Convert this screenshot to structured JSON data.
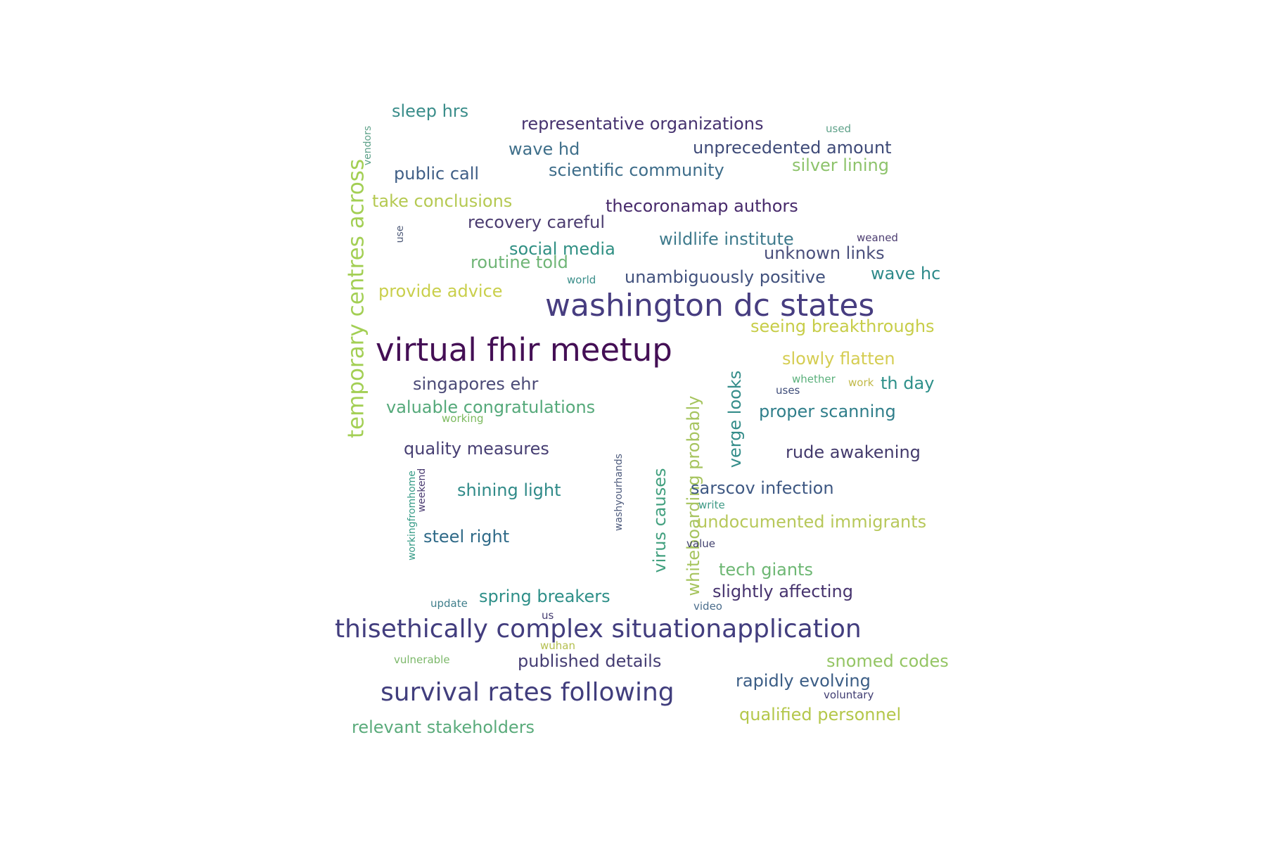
{
  "words": [
    {
      "text": "virtual fhir meetup",
      "color": "#440f55"
    },
    {
      "text": "washington dc states",
      "color": "#473d80"
    },
    {
      "text": "thisethically complex situationapplication",
      "color": "#423d7e"
    },
    {
      "text": "survival rates following",
      "color": "#413e7d"
    },
    {
      "text": "temporary centres across",
      "color": "#a3cf54"
    },
    {
      "text": "sleep hrs",
      "color": "#3a8d8a"
    },
    {
      "text": "representative organizations",
      "color": "#46326f"
    },
    {
      "text": "used",
      "color": "#5ea189"
    },
    {
      "text": "vendors",
      "color": "#5ea189"
    },
    {
      "text": "wave hd",
      "color": "#3f6f8a"
    },
    {
      "text": "unprecedented amount",
      "color": "#3e4a78"
    },
    {
      "text": "public call",
      "color": "#3f5e86"
    },
    {
      "text": "scientific community",
      "color": "#3d6c89"
    },
    {
      "text": "silver lining",
      "color": "#8dc36b"
    },
    {
      "text": "take conclusions",
      "color": "#b5c951"
    },
    {
      "text": "thecoronamap authors",
      "color": "#46296a"
    },
    {
      "text": "recovery careful",
      "color": "#4b3c70"
    },
    {
      "text": "use",
      "color": "#4e5a78"
    },
    {
      "text": "social media",
      "color": "#2f8f83"
    },
    {
      "text": "wildlife institute",
      "color": "#3e7a8c"
    },
    {
      "text": "weaned",
      "color": "#4b3c70"
    },
    {
      "text": "unknown links",
      "color": "#4a4f7c"
    },
    {
      "text": "routine told",
      "color": "#6fb576"
    },
    {
      "text": "wave hc",
      "color": "#2f8a8a"
    },
    {
      "text": "world",
      "color": "#3a8e8a"
    },
    {
      "text": "unambiguously positive",
      "color": "#41517d"
    },
    {
      "text": "provide advice",
      "color": "#c9cf4b"
    },
    {
      "text": "seeing breakthroughs",
      "color": "#c7cd48"
    },
    {
      "text": "slowly flatten",
      "color": "#d5cd52"
    },
    {
      "text": "whether",
      "color": "#5ab07b"
    },
    {
      "text": "work",
      "color": "#c2b948"
    },
    {
      "text": "th day",
      "color": "#2e908a"
    },
    {
      "text": "uses",
      "color": "#3f4d79"
    },
    {
      "text": "singapores ehr",
      "color": "#4b4a77"
    },
    {
      "text": "valuable congratulations",
      "color": "#55a97a"
    },
    {
      "text": "working",
      "color": "#7cba5e"
    },
    {
      "text": "verge looks",
      "color": "#358d8a"
    },
    {
      "text": "whiteboarding probably",
      "color": "#a6c45e"
    },
    {
      "text": "proper scanning",
      "color": "#2f7e8a"
    },
    {
      "text": "quality measures",
      "color": "#473f73"
    },
    {
      "text": "rude awakening",
      "color": "#433a6c"
    },
    {
      "text": "washyourhands",
      "color": "#4d5a7c"
    },
    {
      "text": "virus causes",
      "color": "#42a07f"
    },
    {
      "text": "workingfromhome",
      "color": "#359a86"
    },
    {
      "text": "weekend",
      "color": "#4b3c72"
    },
    {
      "text": "shining light",
      "color": "#2f8a88"
    },
    {
      "text": "sarscov infection",
      "color": "#3e5883"
    },
    {
      "text": "write",
      "color": "#3f9a86"
    },
    {
      "text": "undocumented immigrants",
      "color": "#b7c85a"
    },
    {
      "text": "steel right",
      "color": "#2f6a88"
    },
    {
      "text": "value",
      "color": "#41416e"
    },
    {
      "text": "tech giants",
      "color": "#6db773"
    },
    {
      "text": "slightly affecting",
      "color": "#46336e"
    },
    {
      "text": "update",
      "color": "#3f7e8b"
    },
    {
      "text": "spring breakers",
      "color": "#2e8f88"
    },
    {
      "text": "video",
      "color": "#4b6d8c"
    },
    {
      "text": "us",
      "color": "#443c70"
    },
    {
      "text": "wuhan",
      "color": "#b4bf4f"
    },
    {
      "text": "vulnerable",
      "color": "#7cb86a"
    },
    {
      "text": "published details",
      "color": "#443c72"
    },
    {
      "text": "snomed codes",
      "color": "#94c564"
    },
    {
      "text": "rapidly evolving",
      "color": "#3b5d85"
    },
    {
      "text": "voluntary",
      "color": "#403d72"
    },
    {
      "text": "qualified personnel",
      "color": "#b4c74a"
    },
    {
      "text": "relevant stakeholders",
      "color": "#5aab7b"
    }
  ]
}
